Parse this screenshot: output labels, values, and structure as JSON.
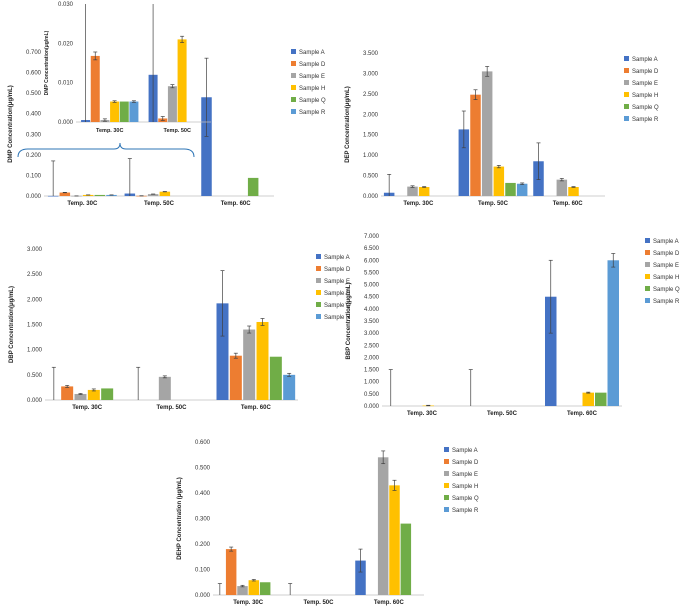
{
  "chart_data": [
    {
      "type": "bar",
      "name": "dmp",
      "ylabel": "DMP Concentration(μg/mL)",
      "ylim": [
        0,
        0.7
      ],
      "ticks": [
        "0.000",
        "0.100",
        "0.200",
        "0.300",
        "0.400",
        "0.500",
        "0.600",
        "0.700"
      ],
      "categories": [
        "Temp. 30C",
        "Temp. 50C",
        "Temp. 60C"
      ],
      "legend": [
        "Sample A",
        "Sample D",
        "Sample E",
        "Sample H",
        "Sample Q",
        "Sample R"
      ],
      "series": [
        {
          "name": "Sample A",
          "values": [
            0.0005,
            0.012,
            0.48
          ],
          "errors": [
            0.17,
            0.17,
            0.19
          ]
        },
        {
          "name": "Sample D",
          "values": [
            0.0168,
            0.0009,
            0
          ],
          "errors": [
            0.001,
            0.0005,
            0
          ]
        },
        {
          "name": "Sample E",
          "values": [
            0.0005,
            0.0091,
            0
          ],
          "errors": [
            0.0003,
            0.0004,
            0
          ]
        },
        {
          "name": "Sample H",
          "values": [
            0.0052,
            0.021,
            0
          ],
          "errors": [
            0.0002,
            0.0008,
            0
          ]
        },
        {
          "name": "Sample Q",
          "values": [
            0.0052,
            0,
            0.088
          ],
          "errors": [
            0,
            0,
            0
          ]
        },
        {
          "name": "Sample R",
          "values": [
            0.0052,
            0,
            0
          ],
          "errors": [
            0.0002,
            0,
            0
          ]
        }
      ],
      "inset": {
        "ylabel": "DMP Concentration(μg/mL)",
        "ylim": [
          0,
          0.03
        ],
        "ticks": [
          "0.000",
          "0.010",
          "0.020",
          "0.030"
        ],
        "categories": [
          "Temp. 30C",
          "Temp. 50C"
        ]
      }
    },
    {
      "type": "bar",
      "name": "dep",
      "ylabel": "DEP Concentration(μg/mL)",
      "ylim": [
        0,
        3.5
      ],
      "ticks": [
        "0.000",
        "0.500",
        "1.000",
        "1.500",
        "2.000",
        "2.500",
        "3.000",
        "3.500"
      ],
      "categories": [
        "Temp. 30C",
        "Temp. 50C",
        "Temp. 60C"
      ],
      "legend": [
        "Sample A",
        "Sample D",
        "Sample E",
        "Sample H",
        "Sample Q",
        "Sample R"
      ],
      "series": [
        {
          "name": "Sample A",
          "values": [
            0.08,
            1.63,
            0.85
          ],
          "errors": [
            0.45,
            0.45,
            0.45
          ]
        },
        {
          "name": "Sample D",
          "values": [
            0,
            2.48,
            0
          ],
          "errors": [
            0,
            0.12,
            0
          ]
        },
        {
          "name": "Sample E",
          "values": [
            0.23,
            3.05,
            0.4
          ],
          "errors": [
            0.02,
            0.12,
            0.03
          ]
        },
        {
          "name": "Sample H",
          "values": [
            0.22,
            0.72,
            0.22
          ],
          "errors": [
            0.01,
            0.03,
            0.01
          ]
        },
        {
          "name": "Sample Q",
          "values": [
            0,
            0.32,
            0
          ],
          "errors": [
            0,
            0,
            0
          ]
        },
        {
          "name": "Sample R",
          "values": [
            0,
            0.3,
            0
          ],
          "errors": [
            0,
            0.02,
            0
          ]
        }
      ]
    },
    {
      "type": "bar",
      "name": "dbp",
      "ylabel": "DBP Concentration(μg/mL)",
      "ylim": [
        0,
        3.0
      ],
      "ticks": [
        "0.000",
        "0.500",
        "1.000",
        "1.500",
        "2.000",
        "2.500",
        "3.000"
      ],
      "categories": [
        "Temp. 30C",
        "Temp. 50C",
        "Temp. 60C"
      ],
      "legend": [
        "Sample A",
        "Sample D",
        "Sample E",
        "Sample H",
        "Sample Q",
        "Sample R"
      ],
      "series": [
        {
          "name": "Sample A",
          "values": [
            0,
            0,
            1.92
          ],
          "errors": [
            0.65,
            0.65,
            0.65
          ]
        },
        {
          "name": "Sample D",
          "values": [
            0.27,
            0,
            0.88
          ],
          "errors": [
            0.02,
            0,
            0.05
          ]
        },
        {
          "name": "Sample E",
          "values": [
            0.12,
            0.46,
            1.4
          ],
          "errors": [
            0.01,
            0.02,
            0.07
          ]
        },
        {
          "name": "Sample H",
          "values": [
            0.2,
            0,
            1.55
          ],
          "errors": [
            0.02,
            0,
            0.07
          ]
        },
        {
          "name": "Sample Q",
          "values": [
            0.23,
            0,
            0.86
          ],
          "errors": [
            0,
            0,
            0
          ]
        },
        {
          "name": "Sample R",
          "values": [
            0,
            0,
            0.5
          ],
          "errors": [
            0,
            0,
            0.03
          ]
        }
      ]
    },
    {
      "type": "bar",
      "name": "bbp",
      "ylabel": "BBP Concentration(μg/mL)",
      "ylim": [
        0,
        7.0
      ],
      "ticks": [
        "0.000",
        "0.500",
        "1.000",
        "1.500",
        "2.000",
        "2.500",
        "3.000",
        "3.500",
        "4.000",
        "4.500",
        "5.000",
        "5.500",
        "6.000",
        "6.500",
        "7.000"
      ],
      "categories": [
        "Temp. 30C",
        "Temp. 50C",
        "Temp. 60C"
      ],
      "legend": [
        "Sample A",
        "Sample D",
        "Sample E",
        "Sample H",
        "Sample Q",
        "Sample R"
      ],
      "series": [
        {
          "name": "Sample A",
          "values": [
            0,
            0,
            4.5
          ],
          "errors": [
            1.5,
            1.5,
            1.5
          ]
        },
        {
          "name": "Sample D",
          "values": [
            0,
            0,
            0
          ],
          "errors": [
            0,
            0,
            0
          ]
        },
        {
          "name": "Sample E",
          "values": [
            0,
            0,
            0
          ],
          "errors": [
            0,
            0,
            0
          ]
        },
        {
          "name": "Sample H",
          "values": [
            0.02,
            0,
            0.55
          ],
          "errors": [
            0.01,
            0,
            0.02
          ]
        },
        {
          "name": "Sample Q",
          "values": [
            0,
            0,
            0.55
          ],
          "errors": [
            0,
            0,
            0
          ]
        },
        {
          "name": "Sample R",
          "values": [
            0,
            0,
            6.0
          ],
          "errors": [
            0,
            0,
            0.28
          ]
        }
      ]
    },
    {
      "type": "bar",
      "name": "dehp",
      "ylabel": "DEHP Concentration (μg/mL)",
      "ylim": [
        0,
        0.6
      ],
      "ticks": [
        "0.000",
        "0.100",
        "0.200",
        "0.300",
        "0.400",
        "0.500",
        "0.600"
      ],
      "categories": [
        "Temp. 30C",
        "Temp. 50C",
        "Temp. 60C"
      ],
      "legend": [
        "Sample A",
        "Sample D",
        "Sample E",
        "Sample H",
        "Sample Q",
        "Sample R"
      ],
      "series": [
        {
          "name": "Sample A",
          "values": [
            0,
            0,
            0.135
          ],
          "errors": [
            0.045,
            0.045,
            0.045
          ]
        },
        {
          "name": "Sample D",
          "values": [
            0.18,
            0,
            0
          ],
          "errors": [
            0.008,
            0,
            0
          ]
        },
        {
          "name": "Sample E",
          "values": [
            0.035,
            0,
            0.54
          ],
          "errors": [
            0.003,
            0,
            0.025
          ]
        },
        {
          "name": "Sample H",
          "values": [
            0.058,
            0,
            0.43
          ],
          "errors": [
            0.003,
            0,
            0.02
          ]
        },
        {
          "name": "Sample Q",
          "values": [
            0.05,
            0,
            0.28
          ],
          "errors": [
            0,
            0,
            0
          ]
        },
        {
          "name": "Sample R",
          "values": [
            0,
            0,
            0
          ],
          "errors": [
            0,
            0,
            0
          ]
        }
      ]
    }
  ],
  "colors": {
    "Sample A": "#4472C4",
    "Sample D": "#ED7D31",
    "Sample E": "#A5A5A5",
    "Sample H": "#FFC000",
    "Sample Q": "#70AD47",
    "Sample R": "#5B9BD5",
    "axis": "#bfbfbf",
    "brace": "#2E75B6",
    "error": "#404040"
  }
}
